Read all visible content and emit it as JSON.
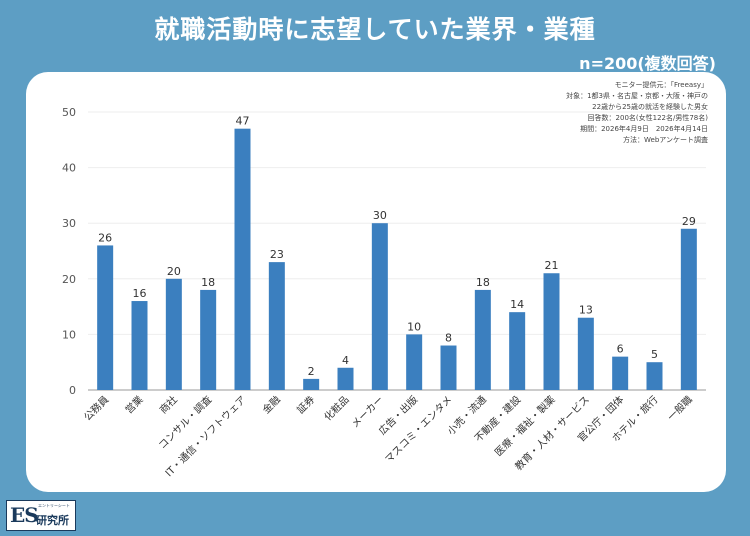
{
  "header": {
    "title": "就職活動時に志望していた業界・業種",
    "subtitle": "n=200(複数回答)"
  },
  "source": {
    "line1": "モニター提供元：「Freeasy」",
    "line2": "対象：1都3県・名古屋・京都・大阪・神戸の",
    "line3": "22歳から25歳の就活を経験した男女",
    "line4": "回答数：200名(女性122名/男性78名)",
    "line5": "期間：2026年4月9日　2026年4月14日",
    "line6": "方法：Webアンケート調査"
  },
  "logo": {
    "mark": "ES",
    "sub": "エントリーシート",
    "name": "研究所"
  },
  "colors": {
    "bar": "#3b7fbf",
    "background": "#5d9ec4",
    "card": "#ffffff"
  },
  "chart_data": {
    "type": "bar",
    "categories": [
      "公務員",
      "営業",
      "商社",
      "コンサル・調査",
      "IT・通信・ソフトウェア",
      "金融",
      "証券",
      "化粧品",
      "メーカー",
      "広告・出版",
      "マスコミ・エンタメ",
      "小売・流通",
      "不動産・建設",
      "医療・福祉・製薬",
      "教育・人材・サービス",
      "官公庁・団体",
      "ホテル・旅行",
      "一般職"
    ],
    "values": [
      26,
      16,
      20,
      18,
      47,
      23,
      2,
      4,
      30,
      10,
      8,
      18,
      14,
      21,
      13,
      6,
      5,
      29
    ],
    "ylim": [
      0,
      50
    ],
    "yticks": [
      0,
      10,
      20,
      30,
      40,
      50
    ],
    "grid": true,
    "data_labels": true
  }
}
